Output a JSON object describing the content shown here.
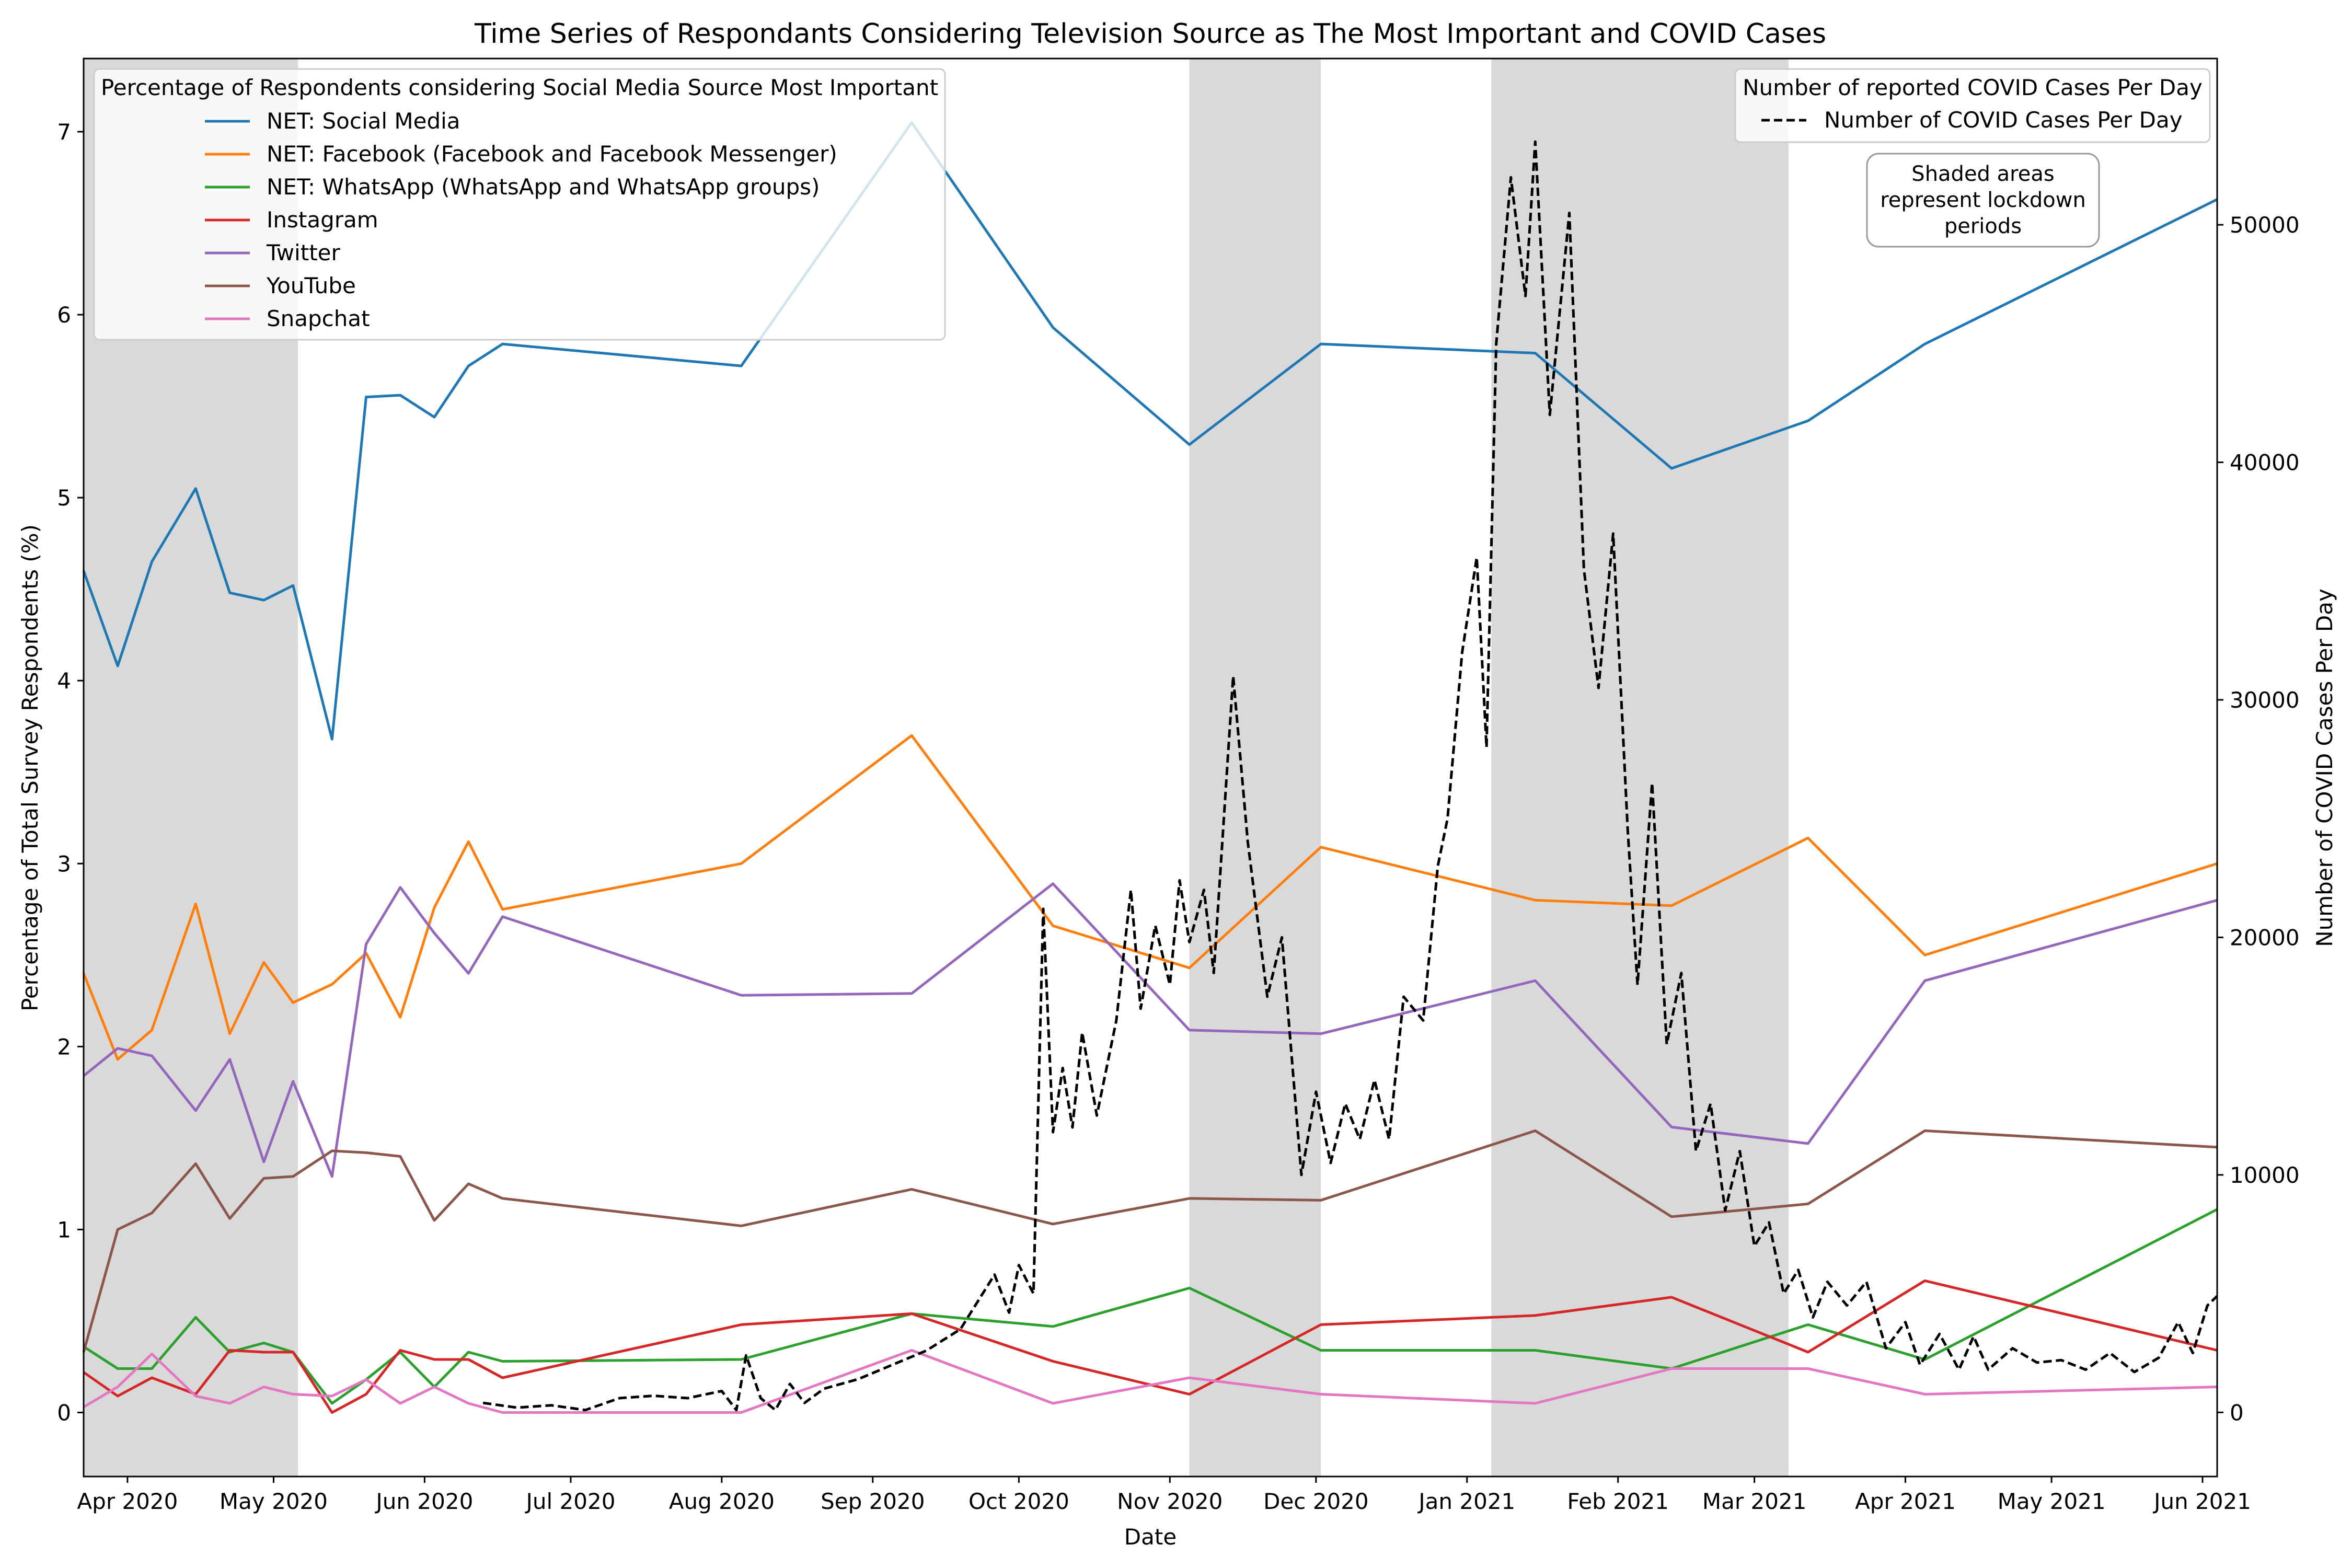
{
  "chart_data": {
    "type": "line",
    "title": "Time Series of Respondants Considering Television Source as The Most Important and COVID Cases",
    "xlabel": "Date",
    "ylabel_left": "Percentage of Total Survey Respondents (%)",
    "ylabel_right": "Number of COVID Cases Per Day",
    "xlim": [
      "2020-03-23",
      "2021-06-04"
    ],
    "ylim_left": [
      -0.35,
      7.4
    ],
    "ylim_right": [
      -2700,
      57000
    ],
    "x_ticks": [
      {
        "date": "2020-04-01",
        "label": "Apr 2020"
      },
      {
        "date": "2020-05-01",
        "label": "May 2020"
      },
      {
        "date": "2020-06-01",
        "label": "Jun 2020"
      },
      {
        "date": "2020-07-01",
        "label": "Jul 2020"
      },
      {
        "date": "2020-08-01",
        "label": "Aug 2020"
      },
      {
        "date": "2020-09-01",
        "label": "Sep 2020"
      },
      {
        "date": "2020-10-01",
        "label": "Oct 2020"
      },
      {
        "date": "2020-11-01",
        "label": "Nov 2020"
      },
      {
        "date": "2020-12-01",
        "label": "Dec 2020"
      },
      {
        "date": "2021-01-01",
        "label": "Jan 2021"
      },
      {
        "date": "2021-02-01",
        "label": "Feb 2021"
      },
      {
        "date": "2021-03-01",
        "label": "Mar 2021"
      },
      {
        "date": "2021-04-01",
        "label": "Apr 2021"
      },
      {
        "date": "2021-05-01",
        "label": "May 2021"
      },
      {
        "date": "2021-06-01",
        "label": "Jun 2021"
      }
    ],
    "y_ticks_left": [
      0,
      1,
      2,
      3,
      4,
      5,
      6,
      7
    ],
    "y_ticks_right": [
      0,
      10000,
      20000,
      30000,
      40000,
      50000
    ],
    "lockdowns": [
      {
        "start": "2020-03-23",
        "end": "2020-05-06"
      },
      {
        "start": "2020-11-05",
        "end": "2020-12-02"
      },
      {
        "start": "2021-01-06",
        "end": "2021-03-08"
      }
    ],
    "legend_left": {
      "title": "Percentage of Respondents considering Social Media Source Most Important",
      "placement": "top-left"
    },
    "legend_right": {
      "title": "Number of reported COVID Cases Per Day",
      "placement": "top-right"
    },
    "annotation": "Shaded areas\nrepresent lockdown\nperiods",
    "survey_dates": [
      "2020-03-23",
      "2020-03-30",
      "2020-04-06",
      "2020-04-15",
      "2020-04-22",
      "2020-04-29",
      "2020-05-05",
      "2020-05-13",
      "2020-05-20",
      "2020-05-27",
      "2020-06-03",
      "2020-06-10",
      "2020-06-17",
      "2020-08-05",
      "2020-09-09",
      "2020-10-08",
      "2020-11-05",
      "2020-12-02",
      "2021-01-15",
      "2021-02-12",
      "2021-03-12",
      "2021-04-05",
      "2021-06-04"
    ],
    "series": [
      {
        "name": "NET: Social Media",
        "color": "#1f77b4",
        "values": [
          4.6,
          4.08,
          4.65,
          5.05,
          4.48,
          4.44,
          4.52,
          3.68,
          5.55,
          5.56,
          5.44,
          5.72,
          5.84,
          5.72,
          7.05,
          5.93,
          5.29,
          5.84,
          5.79,
          5.16,
          5.42,
          5.84,
          6.63
        ]
      },
      {
        "name": "NET: Facebook (Facebook and Facebook Messenger)",
        "color": "#ff7f0e",
        "values": [
          2.4,
          1.93,
          2.09,
          2.78,
          2.07,
          2.46,
          2.24,
          2.34,
          2.51,
          2.16,
          2.76,
          3.12,
          2.75,
          3.0,
          3.7,
          2.66,
          2.43,
          3.09,
          2.8,
          2.77,
          3.14,
          2.5,
          3.0
        ]
      },
      {
        "name": "NET: WhatsApp (WhatsApp and WhatsApp groups)",
        "color": "#2ca02c",
        "values": [
          0.36,
          0.24,
          0.24,
          0.52,
          0.33,
          0.38,
          0.33,
          0.05,
          0.18,
          0.33,
          0.14,
          0.33,
          0.28,
          0.29,
          0.54,
          0.47,
          0.68,
          0.34,
          0.34,
          0.24,
          0.48,
          0.29,
          1.11
        ]
      },
      {
        "name": "Instagram",
        "color": "#d62728",
        "values": [
          0.22,
          0.09,
          0.19,
          0.1,
          0.34,
          0.33,
          0.33,
          0.0,
          0.1,
          0.34,
          0.29,
          0.29,
          0.19,
          0.48,
          0.54,
          0.28,
          0.1,
          0.48,
          0.53,
          0.63,
          0.33,
          0.72,
          0.34
        ]
      },
      {
        "name": "Twitter",
        "color": "#9467bd",
        "values": [
          1.84,
          1.99,
          1.95,
          1.65,
          1.93,
          1.37,
          1.81,
          1.29,
          2.56,
          2.87,
          2.62,
          2.4,
          2.71,
          2.28,
          2.29,
          2.89,
          2.09,
          2.07,
          2.36,
          1.56,
          1.47,
          2.36,
          2.8
        ]
      },
      {
        "name": "YouTube",
        "color": "#8c564b",
        "values": [
          0.33,
          1.0,
          1.09,
          1.36,
          1.06,
          1.28,
          1.29,
          1.43,
          1.42,
          1.4,
          1.05,
          1.25,
          1.17,
          1.02,
          1.22,
          1.03,
          1.17,
          1.16,
          1.54,
          1.07,
          1.14,
          1.54,
          1.45
        ]
      },
      {
        "name": "Snapchat",
        "color": "#e377c2",
        "values": [
          0.03,
          0.14,
          0.32,
          0.09,
          0.05,
          0.14,
          0.1,
          0.09,
          0.18,
          0.05,
          0.14,
          0.05,
          0.0,
          0.0,
          0.34,
          0.05,
          0.19,
          0.1,
          0.05,
          0.24,
          0.24,
          0.1,
          0.14
        ]
      }
    ],
    "covid_series": {
      "name": "Number of COVID Cases Per Day",
      "color": "#000000",
      "style": "dashed",
      "points": [
        [
          "2020-06-13",
          400
        ],
        [
          "2020-06-20",
          200
        ],
        [
          "2020-06-27",
          300
        ],
        [
          "2020-07-04",
          100
        ],
        [
          "2020-07-11",
          600
        ],
        [
          "2020-07-18",
          700
        ],
        [
          "2020-07-25",
          600
        ],
        [
          "2020-08-01",
          900
        ],
        [
          "2020-08-04",
          100
        ],
        [
          "2020-08-06",
          2400
        ],
        [
          "2020-08-09",
          600
        ],
        [
          "2020-08-12",
          100
        ],
        [
          "2020-08-15",
          1200
        ],
        [
          "2020-08-18",
          400
        ],
        [
          "2020-08-22",
          1000
        ],
        [
          "2020-08-29",
          1400
        ],
        [
          "2020-09-05",
          2000
        ],
        [
          "2020-09-12",
          2600
        ],
        [
          "2020-09-19",
          3500
        ],
        [
          "2020-09-26",
          5800
        ],
        [
          "2020-09-29",
          4200
        ],
        [
          "2020-10-01",
          6200
        ],
        [
          "2020-10-04",
          5000
        ],
        [
          "2020-10-06",
          21200
        ],
        [
          "2020-10-08",
          11800
        ],
        [
          "2020-10-10",
          14500
        ],
        [
          "2020-10-12",
          12000
        ],
        [
          "2020-10-14",
          16000
        ],
        [
          "2020-10-17",
          12500
        ],
        [
          "2020-10-21",
          16500
        ],
        [
          "2020-10-24",
          22000
        ],
        [
          "2020-10-26",
          17000
        ],
        [
          "2020-10-29",
          20500
        ],
        [
          "2020-11-01",
          18000
        ],
        [
          "2020-11-03",
          22400
        ],
        [
          "2020-11-05",
          19800
        ],
        [
          "2020-11-08",
          22000
        ],
        [
          "2020-11-10",
          18500
        ],
        [
          "2020-11-14",
          31000
        ],
        [
          "2020-11-17",
          24000
        ],
        [
          "2020-11-21",
          17500
        ],
        [
          "2020-11-24",
          20000
        ],
        [
          "2020-11-28",
          10000
        ],
        [
          "2020-12-01",
          13500
        ],
        [
          "2020-12-04",
          10500
        ],
        [
          "2020-12-07",
          13000
        ],
        [
          "2020-12-10",
          11500
        ],
        [
          "2020-12-13",
          14000
        ],
        [
          "2020-12-16",
          11500
        ],
        [
          "2020-12-19",
          17500
        ],
        [
          "2020-12-23",
          16500
        ],
        [
          "2020-12-26",
          23000
        ],
        [
          "2020-12-28",
          25000
        ],
        [
          "2020-12-31",
          32000
        ],
        [
          "2021-01-03",
          36000
        ],
        [
          "2021-01-05",
          28000
        ],
        [
          "2021-01-07",
          45000
        ],
        [
          "2021-01-10",
          52000
        ],
        [
          "2021-01-13",
          47000
        ],
        [
          "2021-01-15",
          53500
        ],
        [
          "2021-01-18",
          42000
        ],
        [
          "2021-01-22",
          50500
        ],
        [
          "2021-01-25",
          35500
        ],
        [
          "2021-01-28",
          30500
        ],
        [
          "2021-01-31",
          37000
        ],
        [
          "2021-02-03",
          24500
        ],
        [
          "2021-02-05",
          18000
        ],
        [
          "2021-02-08",
          26500
        ],
        [
          "2021-02-11",
          15500
        ],
        [
          "2021-02-14",
          18500
        ],
        [
          "2021-02-17",
          11000
        ],
        [
          "2021-02-20",
          13000
        ],
        [
          "2021-02-23",
          8500
        ],
        [
          "2021-02-26",
          11000
        ],
        [
          "2021-03-01",
          7000
        ],
        [
          "2021-03-04",
          8000
        ],
        [
          "2021-03-07",
          5000
        ],
        [
          "2021-03-10",
          6000
        ],
        [
          "2021-03-13",
          4000
        ],
        [
          "2021-03-16",
          5500
        ],
        [
          "2021-03-20",
          4500
        ],
        [
          "2021-03-24",
          5500
        ],
        [
          "2021-03-28",
          2700
        ],
        [
          "2021-04-01",
          3800
        ],
        [
          "2021-04-04",
          2000
        ],
        [
          "2021-04-08",
          3300
        ],
        [
          "2021-04-12",
          1800
        ],
        [
          "2021-04-15",
          3200
        ],
        [
          "2021-04-18",
          1800
        ],
        [
          "2021-04-23",
          2700
        ],
        [
          "2021-04-28",
          2100
        ],
        [
          "2021-05-03",
          2200
        ],
        [
          "2021-05-08",
          1800
        ],
        [
          "2021-05-13",
          2500
        ],
        [
          "2021-05-18",
          1700
        ],
        [
          "2021-05-23",
          2300
        ],
        [
          "2021-05-27",
          3800
        ],
        [
          "2021-05-30",
          2500
        ],
        [
          "2021-06-02",
          4500
        ],
        [
          "2021-06-04",
          4900
        ]
      ]
    }
  }
}
